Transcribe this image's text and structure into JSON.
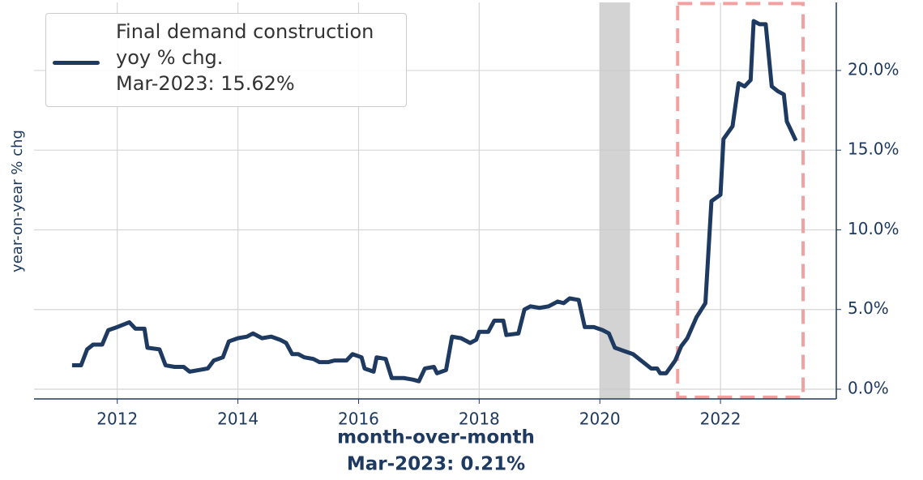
{
  "chart_data": {
    "type": "line",
    "ylabel": "year-on-year % chg",
    "annotations": [
      "month-over-month",
      "Mar-2023: 0.21%"
    ],
    "legend_note": "Mar-2023: 15.62%",
    "xlim": [
      2010.62,
      2023.92
    ],
    "xticks": [
      2012,
      2014,
      2016,
      2018,
      2020,
      2022
    ],
    "ylim": [
      -0.61,
      24.27
    ],
    "yticks": [
      {
        "value": 0,
        "label": "0.0%"
      },
      {
        "value": 5,
        "label": "5.0%"
      },
      {
        "value": 10,
        "label": "10.0%"
      },
      {
        "value": 15,
        "label": "15.0%"
      },
      {
        "value": 20,
        "label": "20.0%"
      }
    ],
    "grid": true,
    "y_axis_side": "right",
    "shaded_span": [
      2020.0,
      2020.5
    ],
    "highlight_box": {
      "x": [
        2021.29,
        2023.37
      ],
      "y": [
        -0.5,
        24.2
      ],
      "color": "#f4a0a0"
    },
    "x": [
      2011.25,
      2011.4,
      2011.5,
      2011.6,
      2011.75,
      2011.85,
      2012.0,
      2012.2,
      2012.3,
      2012.45,
      2012.5,
      2012.7,
      2012.8,
      2012.95,
      2013.1,
      2013.2,
      2013.35,
      2013.5,
      2013.6,
      2013.75,
      2013.85,
      2014.0,
      2014.15,
      2014.25,
      2014.4,
      2014.55,
      2014.7,
      2014.8,
      2014.9,
      2015.0,
      2015.1,
      2015.25,
      2015.35,
      2015.5,
      2015.6,
      2015.8,
      2015.9,
      2016.05,
      2016.1,
      2016.25,
      2016.3,
      2016.45,
      2016.55,
      2016.75,
      2016.9,
      2017.0,
      2017.1,
      2017.25,
      2017.3,
      2017.45,
      2017.55,
      2017.7,
      2017.85,
      2017.95,
      2018.0,
      2018.15,
      2018.25,
      2018.4,
      2018.45,
      2018.65,
      2018.75,
      2018.85,
      2019.0,
      2019.15,
      2019.3,
      2019.4,
      2019.5,
      2019.65,
      2019.75,
      2019.9,
      2020.05,
      2020.15,
      2020.25,
      2020.4,
      2020.55,
      2020.75,
      2020.85,
      2020.95,
      2021.0,
      2021.1,
      2021.25,
      2021.35,
      2021.45,
      2021.6,
      2021.75,
      2021.85,
      2022.0,
      2022.05,
      2022.2,
      2022.3,
      2022.4,
      2022.5,
      2022.55,
      2022.65,
      2022.75,
      2022.85,
      2022.95,
      2023.05,
      2023.1,
      2023.25
    ],
    "series": [
      {
        "name": "Final demand construction yoy % chg.",
        "color": "#1f3a60",
        "values": [
          1.5,
          1.5,
          2.5,
          2.8,
          2.8,
          3.7,
          3.9,
          4.2,
          3.8,
          3.8,
          2.6,
          2.5,
          1.5,
          1.4,
          1.4,
          1.1,
          1.2,
          1.3,
          1.8,
          2.0,
          3.0,
          3.2,
          3.3,
          3.5,
          3.2,
          3.3,
          3.1,
          2.9,
          2.2,
          2.2,
          2.0,
          1.9,
          1.7,
          1.7,
          1.8,
          1.8,
          2.2,
          2.0,
          1.3,
          1.1,
          2.0,
          1.9,
          0.7,
          0.7,
          0.6,
          0.5,
          1.3,
          1.4,
          1.0,
          1.2,
          3.3,
          3.2,
          2.9,
          3.1,
          3.6,
          3.6,
          4.3,
          4.3,
          3.4,
          3.5,
          5.0,
          5.2,
          5.1,
          5.2,
          5.5,
          5.4,
          5.7,
          5.6,
          3.9,
          3.9,
          3.7,
          3.5,
          2.6,
          2.4,
          2.2,
          1.6,
          1.3,
          1.3,
          1.0,
          1.0,
          1.8,
          2.7,
          3.2,
          4.5,
          5.4,
          11.8,
          12.2,
          15.7,
          16.5,
          19.2,
          19.0,
          19.4,
          23.1,
          22.9,
          22.9,
          19.0,
          18.7,
          18.5,
          16.8,
          15.6
        ]
      }
    ]
  }
}
